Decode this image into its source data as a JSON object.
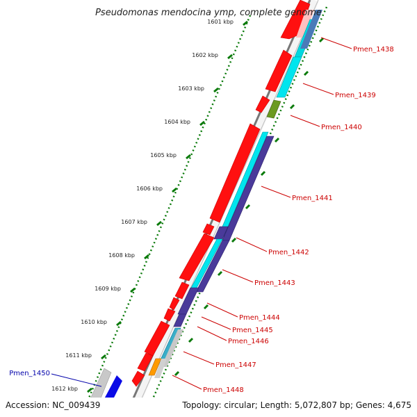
{
  "title": "Pseudomonas mendocina ymp, complete genome",
  "footer": {
    "accession": "Accession: NC_009439",
    "summary": "Topology: circular; Length: 5,072,807 bp; Genes: 4,675"
  },
  "colors": {
    "cds": "#ff1010",
    "cyan": "#00e5ee",
    "indigo": "#4a3a9a",
    "olive": "#6b9a20",
    "orange": "#ff9a00",
    "grey": "#c8c8c8",
    "blue": "#0a0ae6",
    "pink": "#ffc0c0",
    "label_red": "#cc0000",
    "label_blue": "#0000aa",
    "tick_green": "#0a7a0a"
  },
  "ruler": [
    {
      "label": "1601 kbp"
    },
    {
      "label": "1602 kbp"
    },
    {
      "label": "1603 kbp"
    },
    {
      "label": "1604 kbp"
    },
    {
      "label": "1605 kbp"
    },
    {
      "label": "1606 kbp"
    },
    {
      "label": "1607 kbp"
    },
    {
      "label": "1608 kbp"
    },
    {
      "label": "1609 kbp"
    },
    {
      "label": "1610 kbp"
    },
    {
      "label": "1611 kbp"
    },
    {
      "label": "1612 kbp"
    }
  ],
  "gene_labels": [
    {
      "label": "Pmen_1438",
      "color": "label_red"
    },
    {
      "label": "Pmen_1439",
      "color": "label_red"
    },
    {
      "label": "Pmen_1440",
      "color": "label_red"
    },
    {
      "label": "Pmen_1441",
      "color": "label_red"
    },
    {
      "label": "Pmen_1442",
      "color": "label_red"
    },
    {
      "label": "Pmen_1443",
      "color": "label_red"
    },
    {
      "label": "Pmen_1444",
      "color": "label_red"
    },
    {
      "label": "Pmen_1445",
      "color": "label_red"
    },
    {
      "label": "Pmen_1446",
      "color": "label_red"
    },
    {
      "label": "Pmen_1447",
      "color": "label_red"
    },
    {
      "label": "Pmen_1448",
      "color": "label_red"
    },
    {
      "label": "Pmen_1450",
      "color": "label_blue"
    }
  ]
}
